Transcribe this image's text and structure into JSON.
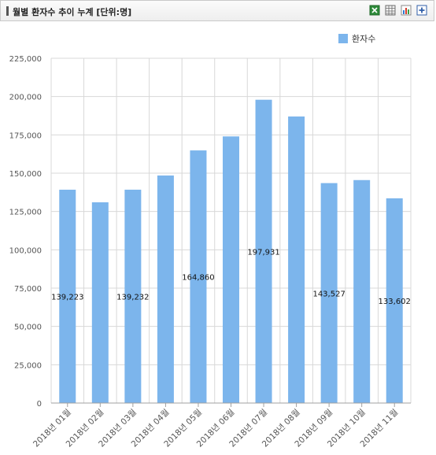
{
  "header": {
    "title": "월별 환자수 추이 누계 [단위:명]",
    "tools": [
      {
        "name": "excel-export-icon",
        "color": "#2e8b3a"
      },
      {
        "name": "table-view-icon",
        "color": "#6b6b6b"
      },
      {
        "name": "bar-chart-icon",
        "color": "#d23a2a"
      },
      {
        "name": "expand-icon",
        "color": "#2f5da8"
      }
    ]
  },
  "colors": {
    "bar": "#7cb5ec",
    "grid": "#d8d8d8",
    "axis_text": "#555555"
  },
  "chart_data": {
    "type": "bar",
    "categories": [
      "2018년 01월",
      "2018년 02월",
      "2018년 03월",
      "2018년 04월",
      "2018년 05월",
      "2018년 06월",
      "2018년 07월",
      "2018년 08월",
      "2018년 09월",
      "2018년 10월",
      "2018년 11월"
    ],
    "series": [
      {
        "name": "환자수",
        "values": [
          139223,
          131000,
          139232,
          148500,
          164860,
          174000,
          197931,
          187000,
          143527,
          145500,
          133602
        ]
      }
    ],
    "data_labels": [
      "139,223",
      "",
      "139,232",
      "",
      "164,860",
      "",
      "197,931",
      "",
      "143,527",
      "",
      "133,602"
    ],
    "y_ticks": [
      "0",
      "25,000",
      "50,000",
      "75,000",
      "100,000",
      "125,000",
      "150,000",
      "175,000",
      "200,000",
      "225,000"
    ],
    "ylim": [
      0,
      225000
    ],
    "legend_position": "top-right",
    "grid": true
  }
}
